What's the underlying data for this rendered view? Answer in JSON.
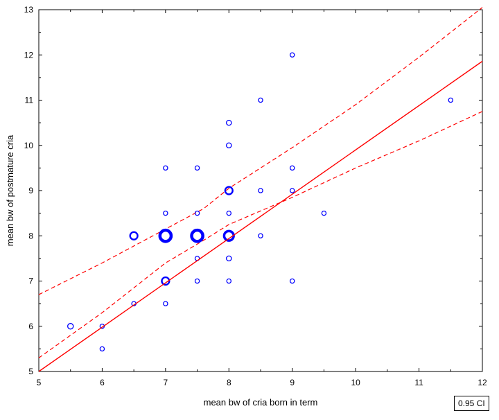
{
  "chart_data": {
    "type": "scatter",
    "title": "",
    "xlabel": "mean bw of cria born in term",
    "ylabel": "mean bw of postmature cria",
    "xlim": [
      5,
      12
    ],
    "ylim": [
      5,
      13
    ],
    "xticks": [
      "5",
      "6",
      "7",
      "8",
      "9",
      "10",
      "11",
      "12"
    ],
    "yticks": [
      "5",
      "6",
      "7",
      "8",
      "9",
      "10",
      "11",
      "12",
      "13"
    ],
    "grid": false,
    "points": [
      {
        "x": 5.5,
        "y": 6.0,
        "n": 2
      },
      {
        "x": 6.0,
        "y": 6.0,
        "n": 1
      },
      {
        "x": 6.0,
        "y": 5.5,
        "n": 1
      },
      {
        "x": 6.5,
        "y": 6.5,
        "n": 1
      },
      {
        "x": 6.5,
        "y": 8.0,
        "n": 4
      },
      {
        "x": 7.0,
        "y": 9.5,
        "n": 1
      },
      {
        "x": 7.0,
        "y": 8.5,
        "n": 1
      },
      {
        "x": 7.0,
        "y": 8.0,
        "n": 10
      },
      {
        "x": 7.0,
        "y": 7.0,
        "n": 4
      },
      {
        "x": 7.0,
        "y": 6.5,
        "n": 1
      },
      {
        "x": 7.5,
        "y": 9.5,
        "n": 1
      },
      {
        "x": 7.5,
        "y": 8.5,
        "n": 1
      },
      {
        "x": 7.5,
        "y": 8.0,
        "n": 10
      },
      {
        "x": 7.5,
        "y": 7.5,
        "n": 1
      },
      {
        "x": 7.5,
        "y": 7.0,
        "n": 1
      },
      {
        "x": 8.0,
        "y": 10.5,
        "n": 1.5
      },
      {
        "x": 8.0,
        "y": 10.0,
        "n": 1.5
      },
      {
        "x": 8.0,
        "y": 9.0,
        "n": 4
      },
      {
        "x": 8.0,
        "y": 8.5,
        "n": 1
      },
      {
        "x": 8.0,
        "y": 8.0,
        "n": 7
      },
      {
        "x": 8.0,
        "y": 7.5,
        "n": 1.5
      },
      {
        "x": 8.0,
        "y": 7.0,
        "n": 1
      },
      {
        "x": 8.5,
        "y": 11.0,
        "n": 1
      },
      {
        "x": 8.5,
        "y": 9.0,
        "n": 1
      },
      {
        "x": 8.5,
        "y": 8.0,
        "n": 1
      },
      {
        "x": 9.0,
        "y": 12.0,
        "n": 1
      },
      {
        "x": 9.0,
        "y": 9.5,
        "n": 1
      },
      {
        "x": 9.0,
        "y": 9.0,
        "n": 1
      },
      {
        "x": 9.0,
        "y": 7.0,
        "n": 1
      },
      {
        "x": 9.5,
        "y": 8.5,
        "n": 1
      },
      {
        "x": 11.5,
        "y": 11.0,
        "n": 1
      }
    ],
    "regression": {
      "intercept": 0.1,
      "slope": 0.98
    },
    "confidence_band": {
      "x": [
        5,
        6,
        7,
        7.6,
        8,
        9,
        10,
        11,
        12
      ],
      "upper": [
        6.7,
        7.4,
        8.15,
        8.6,
        9.05,
        9.95,
        10.9,
        11.95,
        13.05
      ],
      "lower": [
        5.3,
        6.3,
        7.4,
        7.9,
        8.25,
        8.85,
        9.5,
        10.1,
        10.75
      ]
    },
    "legend": {
      "label": "0.95 CI",
      "position": "bottom-right"
    },
    "colors": {
      "points": "#0000ff",
      "line": "#ff0000",
      "axes": "#000000"
    }
  }
}
